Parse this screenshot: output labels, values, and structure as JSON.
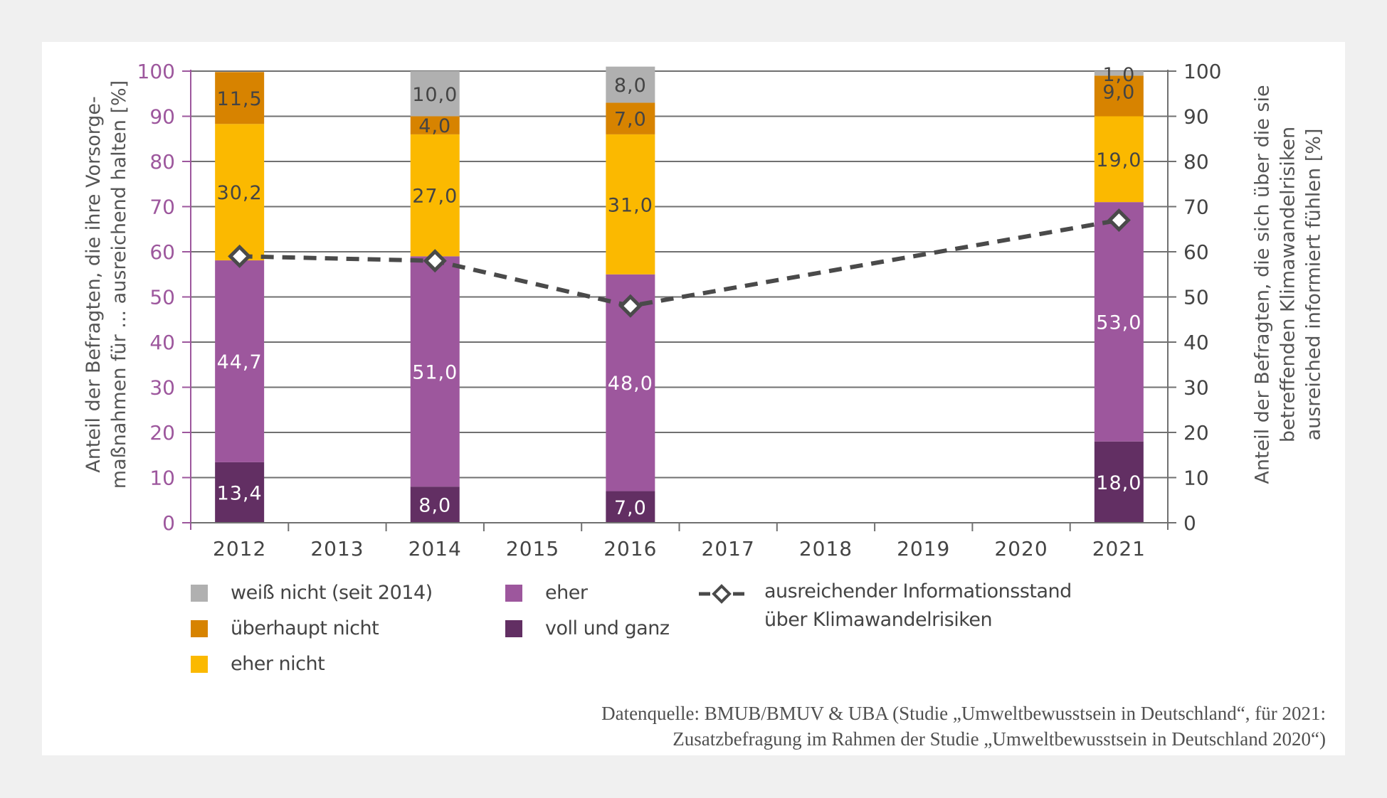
{
  "chart_data": {
    "type": "bar",
    "stacked": true,
    "title": "",
    "categories": [
      "2012",
      "2013",
      "2014",
      "2015",
      "2016",
      "2017",
      "2018",
      "2019",
      "2020",
      "2021"
    ],
    "ylabel_left": "Anteil der Befragten, die ihre Vorsorge-maßnahmen für ... ausreichend halten [%]",
    "ylabel_left_lines": [
      "Anteil der Befragten, die ihre Vorsorge-",
      "maßnahmen für ...  ausreichend halten [%]"
    ],
    "ylabel_right": "Anteil der Befragten, die sich über die sie betreffenden Klimawandelrisiken ausreiched informiert fühlen [%]",
    "ylabel_right_lines": [
      "Anteil der Befragten, die sich über die sie",
      "betreffenden Klimawandelrisiken",
      "ausreiched informiert fühlen [%]"
    ],
    "ylim": [
      0,
      100
    ],
    "yticks": [
      0,
      10,
      20,
      30,
      40,
      50,
      60,
      70,
      80,
      90,
      100
    ],
    "grid": true,
    "series": [
      {
        "name": "voll und ganz",
        "color": "#622f63",
        "label_color": "#ffffff",
        "values": [
          13.4,
          null,
          8.0,
          null,
          7.0,
          null,
          null,
          null,
          null,
          18.0
        ],
        "labels": [
          "13,4",
          null,
          "8,0",
          null,
          "7,0",
          null,
          null,
          null,
          null,
          "18,0"
        ]
      },
      {
        "name": "eher",
        "color": "#9d579d",
        "label_color": "#ffffff",
        "values": [
          44.7,
          null,
          51.0,
          null,
          48.0,
          null,
          null,
          null,
          null,
          53.0
        ],
        "labels": [
          "44,7",
          null,
          "51,0",
          null,
          "48,0",
          null,
          null,
          null,
          null,
          "53,0"
        ]
      },
      {
        "name": "eher nicht",
        "color": "#fbb900",
        "label_color": "#444444",
        "values": [
          30.2,
          null,
          27.0,
          null,
          31.0,
          null,
          null,
          null,
          null,
          19.0
        ],
        "labels": [
          "30,2",
          null,
          "27,0",
          null,
          "31,0",
          null,
          null,
          null,
          null,
          "19,0"
        ]
      },
      {
        "name": "überhaupt nicht",
        "color": "#d78300",
        "label_color": "#444444",
        "values": [
          11.5,
          null,
          4.0,
          null,
          7.0,
          null,
          null,
          null,
          null,
          9.0
        ],
        "labels": [
          "11,5",
          null,
          "4,0",
          null,
          "7,0",
          null,
          null,
          null,
          null,
          "9,0"
        ]
      },
      {
        "name": "weiß nicht (seit 2014)",
        "color": "#b0b0b0",
        "label_color": "#444444",
        "values": [
          null,
          null,
          10.0,
          null,
          8.0,
          null,
          null,
          null,
          null,
          1.0
        ],
        "labels": [
          null,
          null,
          "10,0",
          null,
          "8,0",
          null,
          null,
          null,
          null,
          "1,0"
        ]
      }
    ],
    "line_series": {
      "name": "ausreichender Informationsstand über Klimawandelrisiken",
      "axis": "right",
      "style": "dashed",
      "marker": "diamond",
      "color": "#4a4a4a",
      "values": [
        59,
        null,
        58,
        null,
        48,
        null,
        null,
        null,
        null,
        67
      ]
    },
    "legend": {
      "placement": "bottom",
      "items": [
        {
          "label": "weiß nicht (seit 2014)",
          "color": "#b0b0b0"
        },
        {
          "label": "überhaupt nicht",
          "color": "#d78300"
        },
        {
          "label": "eher nicht",
          "color": "#fbb900"
        },
        {
          "label": "eher",
          "color": "#9d579d"
        },
        {
          "label": "voll und ganz",
          "color": "#622f63"
        },
        {
          "label_lines": [
            "ausreichender Informationsstand",
            "über Klimawandelrisiken"
          ],
          "type": "line-diamond"
        }
      ]
    },
    "axis_colors": {
      "left_ticks": "#9d579d",
      "right_ticks": "#444444",
      "x_ticks": "#444444"
    }
  },
  "source": {
    "line1": "Datenquelle: BMUB/BMUV & UBA (Studie „Umweltbewusstsein in Deutschland“, für 2021:",
    "line2": "Zusatzbefragung im Rahmen der Studie „Umweltbewusstsein in Deutschland 2020“)"
  }
}
